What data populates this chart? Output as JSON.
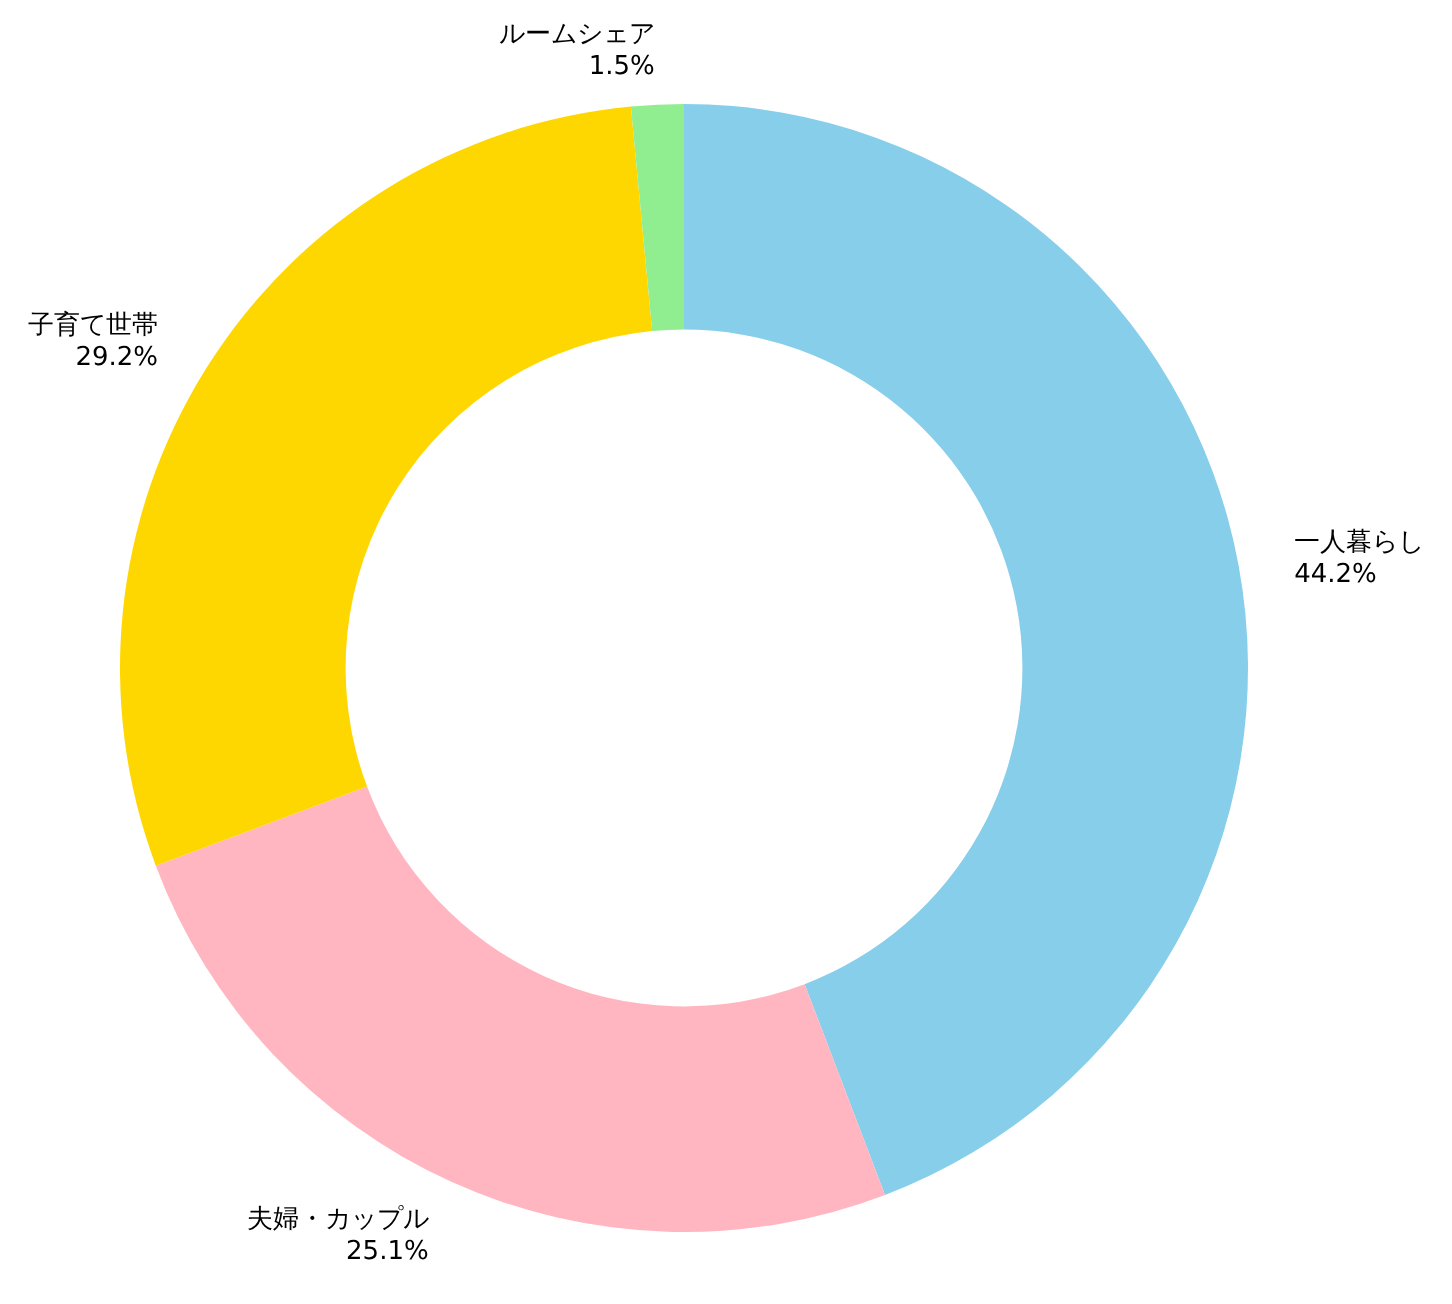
{
  "chart_data": {
    "type": "donut",
    "categories": [
      "一人暮らし",
      "夫婦・カップル",
      "子育て世帯",
      "ルームシェア"
    ],
    "values": [
      44.2,
      25.1,
      29.2,
      1.5
    ],
    "colors": [
      "#87ceeb",
      "#ffb6c1",
      "#ffd700",
      "#90ee90"
    ],
    "value_labels": [
      "44.2%",
      "25.1%",
      "29.2%",
      "1.5%"
    ]
  }
}
